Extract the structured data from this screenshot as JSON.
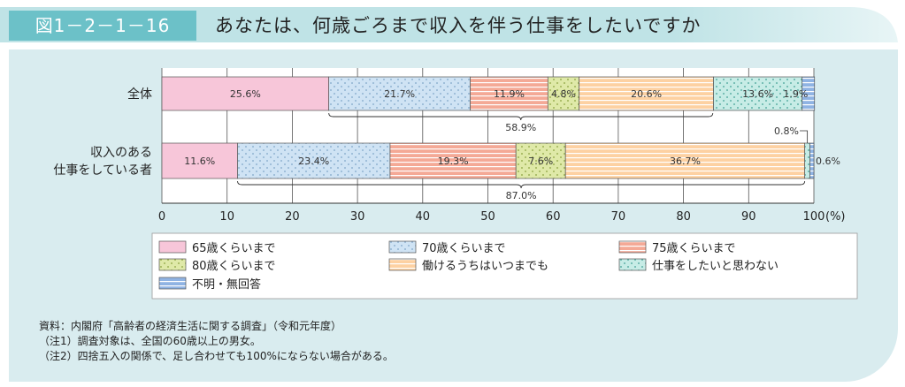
{
  "figure_label": "図1－2－1－16",
  "title": "あなたは、何歳ごろまで収入を伴う仕事をしたいですか",
  "notes": [
    "資料：内閣府「高齢者の経済生活に関する調査」（令和元年度）",
    "（注1）調査対象は、全国の60歳以上の男女。",
    "（注2）四捨五入の関係で、足し合わせても100%にならない場合がある。"
  ],
  "colors": {
    "header_bar": "#6cc1c8",
    "panel_bg": "#d9ecef"
  },
  "chart_data": {
    "type": "bar",
    "orientation": "horizontal",
    "stacked": true,
    "categories": [
      "全体",
      "収入のある仕事をしている者"
    ],
    "category_label_lines": [
      [
        "全体"
      ],
      [
        "収入のある",
        "仕事をしている者"
      ]
    ],
    "series": [
      {
        "name": "65歳くらいまで",
        "values": [
          25.6,
          11.6
        ],
        "color": "#f7c6d9",
        "pattern": "solid"
      },
      {
        "name": "70歳くらいまで",
        "values": [
          21.7,
          23.4
        ],
        "color": "#cfe3f4",
        "pattern": "dots"
      },
      {
        "name": "75歳くらいまで",
        "values": [
          11.9,
          19.3
        ],
        "color": "#f4a996",
        "pattern": "hlines"
      },
      {
        "name": "80歳くらいまで",
        "values": [
          4.8,
          7.6
        ],
        "color": "#dfe9a8",
        "pattern": "dots-green"
      },
      {
        "name": "働けるうちはいつまでも",
        "values": [
          20.6,
          36.7
        ],
        "color": "#fdd1a2",
        "pattern": "hlines-orange"
      },
      {
        "name": "仕事をしたいと思わない",
        "values": [
          13.6,
          0.8
        ],
        "color": "#c7ece6",
        "pattern": "dots-teal"
      },
      {
        "name": "不明・無回答",
        "values": [
          1.9,
          0.6
        ],
        "color": "#8fb3e3",
        "pattern": "hlines-blue"
      }
    ],
    "data_labels": [
      [
        "25.6%",
        "21.7%",
        "11.9%",
        "4.8%",
        "20.6%",
        "13.6%",
        "1.9%"
      ],
      [
        "11.6%",
        "23.4%",
        "19.3%",
        "7.6%",
        "36.7%",
        "0.8%",
        "0.6%"
      ]
    ],
    "brackets": [
      {
        "category": "全体",
        "from": 25.6,
        "to": 84.5,
        "label": "58.9%"
      },
      {
        "category": "収入のある仕事をしている者",
        "from": 11.6,
        "to": 98.6,
        "label": "87.0%"
      }
    ],
    "x_ticks": [
      0,
      10,
      20,
      30,
      40,
      50,
      60,
      70,
      80,
      90,
      100
    ],
    "x_unit": "(%)",
    "xlim": [
      0,
      100
    ],
    "grid": true,
    "legend_position": "bottom"
  }
}
